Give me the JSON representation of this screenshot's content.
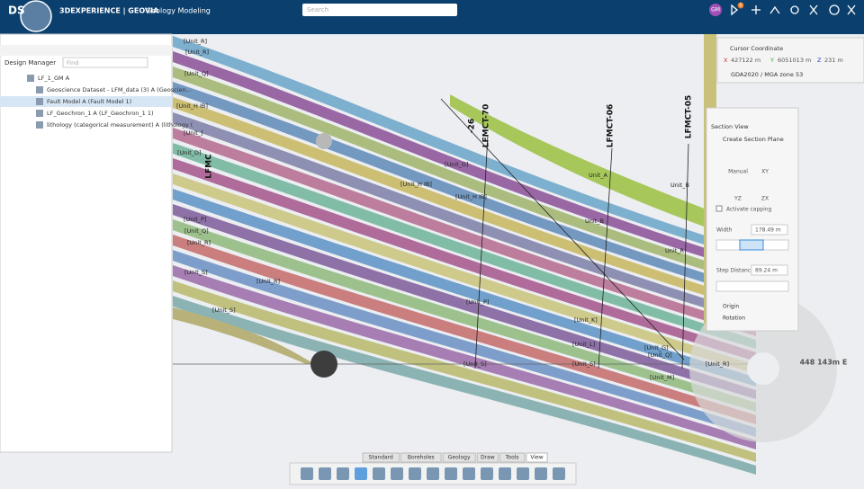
{
  "header": {
    "brand": "3DEXPERIENCE | GEOVIA",
    "app": "Geology Modeling",
    "search": "Search",
    "user": "GM",
    "badge": "8"
  },
  "design_manager": {
    "title": "Design Manager",
    "find": "Find",
    "items": [
      "LF_1_GM A",
      "Geoscience Dataset - LFM_data (3) A (Geoscien...",
      "Fault Model A (Fault Model 1)",
      "LF_Geochron_1 A (LF_Geochron_1 1)",
      "lithology (categorical measurement) A (lithology ("
    ]
  },
  "viewport": {
    "faults": [
      "LFMCT-70",
      "LFMCT-06",
      "LFMCT-05",
      "-26",
      "LFMC"
    ],
    "units": [
      "[Unit_R]",
      "[Unit_R]",
      "[Unit_Q]",
      "[Unit_H IB]",
      "[Unit_]",
      "[Unit_D]",
      "[Unit_P]",
      "[Unit_Q]",
      "[Unit_R]",
      "[Unit_S]",
      "[Unit_R]",
      "[Unit_S]",
      "[Unit_H IB]",
      "[Unit_H IB]",
      "[Unit_G]",
      "Unit_A",
      "Unit_B",
      "Unit_R",
      "Unit_B",
      "[Unit_S]",
      "[Unit_P]",
      "[Unit_K]",
      "[Unit_L]",
      "[Unit_S]",
      "[Unit_G]",
      "[Unit_M]",
      "[Unit_Q]",
      "[Unit_R]"
    ]
  },
  "cursor": {
    "title": "Cursor Coordinate",
    "x_label": "X",
    "x": "427122 m",
    "y_label": "Y",
    "y": "6051013 m",
    "z_label": "Z",
    "z": "231 m",
    "crs": "GDA2020 / MGA zone 53"
  },
  "section": {
    "title": "Section View",
    "create": "Create Section Plane",
    "manual": "Manual",
    "xy": "XY",
    "yz": "YZ",
    "zx": "ZX",
    "capping": "Activate capping",
    "width_label": "Width",
    "width": "178.49 m",
    "step_label": "Step Distance",
    "step": "89.24 m",
    "origin": "Origin",
    "rotation": "Rotation"
  },
  "compass": "448 143m E",
  "tabs": [
    "Standard",
    "Boreholes",
    "Geology",
    "Draw",
    "Tools",
    "View"
  ]
}
